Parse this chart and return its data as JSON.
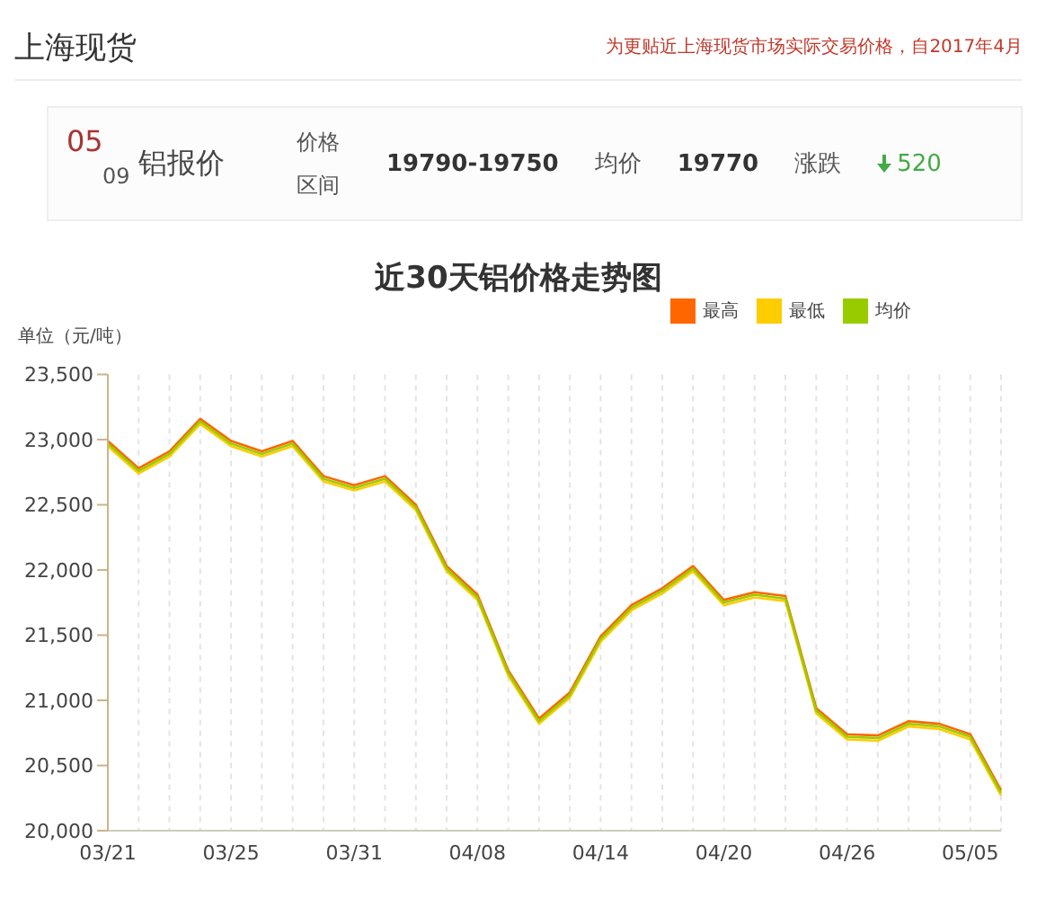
{
  "chart_data": {
    "type": "line",
    "title": "近30天铝价格走势图",
    "ylabel": "单位（元/吨）",
    "annotations": [
      "上海现货",
      "为更贴近上海现货市场实际交易价格，自2017年4月",
      "05",
      "09",
      "铝报价",
      "价格区间",
      "19790-19750",
      "均价",
      "19770",
      "涨跌",
      "520"
    ],
    "categories": [
      "03/21",
      null,
      null,
      null,
      "03/25",
      null,
      null,
      null,
      "03/31",
      null,
      null,
      null,
      "04/08",
      null,
      null,
      null,
      "04/14",
      null,
      null,
      null,
      "04/20",
      null,
      null,
      null,
      "04/26",
      null,
      null,
      null,
      "05/05",
      null
    ],
    "series": [
      {
        "name": "最高",
        "color": "#ff6600",
        "values": [
          22990,
          22780,
          22910,
          23160,
          22990,
          22910,
          22990,
          22720,
          22650,
          22720,
          22500,
          22030,
          21810,
          21230,
          20860,
          21060,
          21490,
          21730,
          21860,
          22030,
          21770,
          21830,
          21800,
          20940,
          20740,
          20730,
          20840,
          20820,
          20740,
          20310
        ]
      },
      {
        "name": "最低",
        "color": "#ffcc00",
        "values": [
          22950,
          22740,
          22870,
          23120,
          22950,
          22870,
          22950,
          22680,
          22610,
          22680,
          22460,
          21990,
          21770,
          21190,
          20820,
          21020,
          21450,
          21690,
          21820,
          21990,
          21730,
          21790,
          21760,
          20900,
          20700,
          20690,
          20800,
          20780,
          20700,
          20270
        ]
      },
      {
        "name": "均价",
        "color": "#99cc00",
        "values": [
          22970,
          22760,
          22890,
          23140,
          22970,
          22890,
          22970,
          22700,
          22630,
          22700,
          22480,
          22010,
          21790,
          21210,
          20840,
          21040,
          21470,
          21710,
          21840,
          22010,
          21750,
          21810,
          21780,
          20920,
          20720,
          20710,
          20820,
          20800,
          20720,
          20290
        ]
      }
    ],
    "ylim": [
      20000,
      23500
    ],
    "yticks": [
      {
        "value": 20000,
        "label": "20,000"
      },
      {
        "value": 20500,
        "label": "20,500"
      },
      {
        "value": 21000,
        "label": "21,000"
      },
      {
        "value": 21500,
        "label": "21,500"
      },
      {
        "value": 22000,
        "label": "22,000"
      },
      {
        "value": 22500,
        "label": "22,500"
      },
      {
        "value": 23000,
        "label": "23,000"
      },
      {
        "value": 23500,
        "label": "23,500"
      }
    ],
    "grid": "x",
    "legend": "top right"
  }
}
